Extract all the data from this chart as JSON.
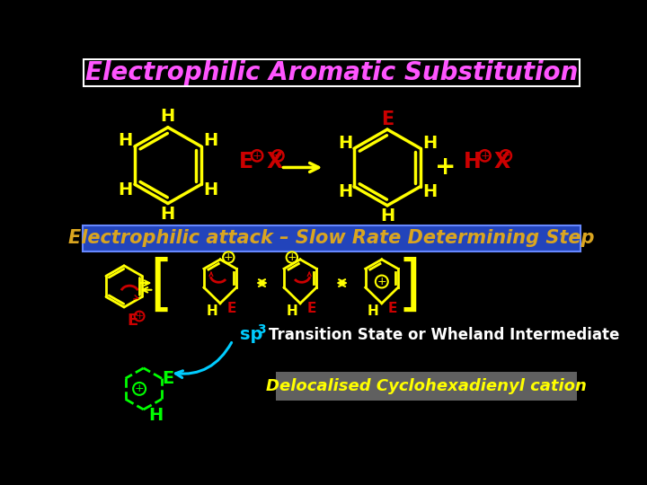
{
  "title": "Electrophilic Aromatic Substitution",
  "title_color": "#FF55FF",
  "title_bg": "#000000",
  "title_border": "#FFFFFF",
  "subtitle": "Electrophilic attack – Slow Rate Determining Step",
  "subtitle_color": "#DAA520",
  "subtitle_bg": "#2244BB",
  "bottom_label": "Transition State or Wheland Intermediate",
  "bottom_label_color": "#FFFFFF",
  "delocalised_label": "Delocalised Cyclohexadienyl cation",
  "delocalised_color": "#FFFF00",
  "delocalised_bg": "#666666",
  "sp3_color": "#00CCFF",
  "bg_color": "#000000",
  "benzene_color": "#FFFF00",
  "H_color": "#FFFF00",
  "E_color": "#CC0000",
  "EX_color": "#CC0000",
  "plus_color": "#FFFF00",
  "red_arrow_color": "#CC0000",
  "green_color": "#00FF00",
  "bracket_color": "#FFFF00",
  "arrow_color": "#FFFF00"
}
